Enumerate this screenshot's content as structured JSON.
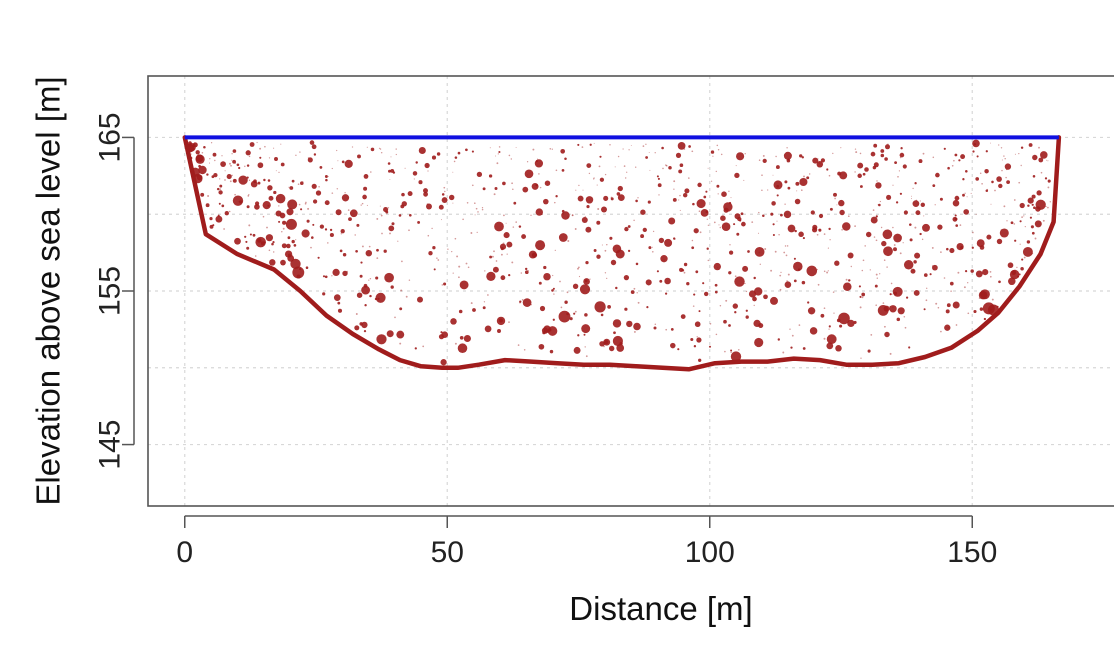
{
  "chart_data": {
    "type": "area",
    "title": "",
    "xlabel": "Distance [m]",
    "ylabel": "Elevation above sea level [m]",
    "xlim": [
      -7,
      177
    ],
    "ylim": [
      141,
      169
    ],
    "x_ticks": [
      "0",
      "50",
      "100",
      "150"
    ],
    "x_tick_values": [
      0,
      50,
      100,
      150
    ],
    "y_ticks": [
      "145",
      "155",
      "165"
    ],
    "y_tick_values": [
      145,
      155,
      165
    ],
    "y_grid_values": [
      145,
      150,
      155,
      160,
      165
    ],
    "grid": true,
    "water_surface": {
      "elevation": 165,
      "x_start": 0,
      "x_end": 166.5,
      "color": "#1010e0"
    },
    "riverbed_profile": {
      "color": "#a01c1c",
      "x": [
        0,
        4,
        10,
        17,
        22,
        27,
        32,
        37,
        41,
        45,
        49,
        52,
        56,
        61,
        66,
        71,
        76,
        81,
        86,
        91,
        96,
        101,
        106,
        111,
        116,
        121,
        126,
        131,
        136,
        141,
        146,
        151,
        155,
        159,
        163,
        165.5,
        166.5
      ],
      "y": [
        165,
        158.7,
        157.4,
        156.4,
        155.0,
        153.4,
        152.2,
        151.2,
        150.5,
        150.1,
        150.0,
        150.0,
        150.2,
        150.5,
        150.4,
        150.3,
        150.2,
        150.2,
        150.1,
        150.0,
        149.9,
        150.3,
        150.4,
        150.4,
        150.6,
        150.5,
        150.2,
        150.2,
        150.3,
        150.7,
        151.3,
        152.4,
        153.6,
        155.3,
        157.4,
        159.5,
        165
      ]
    },
    "particles": {
      "description_count": 1200,
      "color": "#a01c1c"
    },
    "colors": {
      "background": "#ffffff",
      "frame": "#555555",
      "grid": "#d8d8d8",
      "bed": "#a01c1c",
      "water": "#1010e0"
    }
  }
}
